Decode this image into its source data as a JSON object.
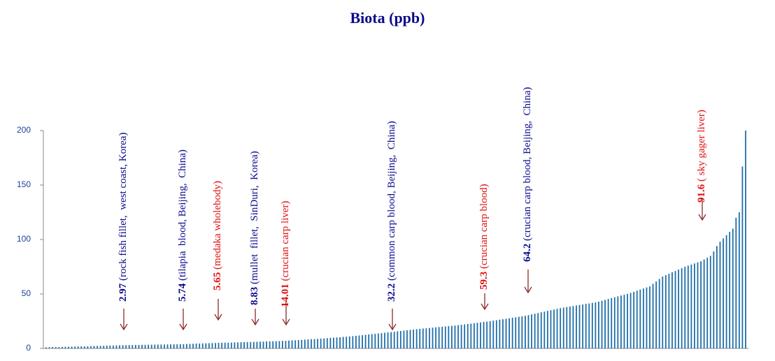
{
  "chart_data": {
    "type": "bar",
    "title": "Biota (ppb)",
    "color": "#1f6fa8",
    "ylim": [
      0,
      200
    ],
    "yticks": [
      0,
      50,
      100,
      150,
      200
    ],
    "grid": false,
    "values": [
      1.0,
      1.1,
      1.2,
      1.3,
      1.3,
      1.4,
      1.5,
      1.6,
      1.6,
      1.7,
      1.8,
      1.9,
      1.9,
      2.0,
      2.1,
      2.2,
      2.3,
      2.3,
      2.4,
      2.5,
      2.6,
      2.7,
      2.8,
      2.9,
      3.0,
      3.0,
      3.1,
      3.1,
      3.2,
      3.2,
      3.3,
      3.3,
      3.4,
      3.4,
      3.5,
      3.5,
      3.6,
      3.6,
      3.7,
      3.7,
      3.8,
      3.8,
      3.9,
      4.0,
      4.1,
      4.2,
      4.3,
      4.4,
      4.5,
      4.6,
      4.7,
      4.8,
      4.9,
      5.0,
      5.1,
      5.2,
      5.3,
      5.3,
      5.4,
      5.5,
      5.6,
      5.7,
      5.8,
      5.8,
      5.9,
      6.0,
      6.1,
      6.2,
      6.3,
      6.4,
      6.5,
      6.6,
      6.7,
      6.8,
      6.9,
      7.0,
      7.2,
      7.4,
      7.5,
      7.7,
      7.9,
      8.1,
      8.3,
      8.5,
      8.6,
      8.8,
      9.0,
      9.2,
      9.4,
      9.7,
      9.9,
      10.1,
      10.3,
      10.6,
      10.8,
      11.0,
      11.3,
      11.6,
      11.9,
      12.2,
      12.5,
      12.8,
      13.1,
      13.4,
      13.7,
      14.0,
      14.4,
      14.7,
      15.0,
      15.3,
      15.7,
      16.0,
      16.3,
      16.7,
      17.0,
      17.3,
      17.7,
      18.0,
      18.3,
      18.5,
      18.8,
      19.1,
      19.4,
      19.6,
      19.9,
      20.2,
      20.5,
      20.7,
      21.0,
      21.4,
      21.7,
      22.1,
      22.5,
      22.8,
      23.2,
      23.5,
      23.9,
      24.3,
      24.6,
      25.0,
      25.5,
      25.9,
      26.4,
      26.8,
      27.3,
      27.7,
      28.2,
      28.6,
      29.1,
      29.5,
      30.0,
      30.6,
      31.3,
      31.9,
      32.5,
      33.2,
      33.8,
      34.5,
      35.1,
      35.7,
      36.4,
      37.0,
      37.5,
      38.0,
      38.5,
      38.9,
      39.4,
      39.9,
      40.4,
      40.9,
      41.3,
      41.8,
      42.3,
      43.0,
      43.8,
      44.6,
      45.4,
      46.2,
      47.0,
      47.8,
      48.6,
      49.3,
      50.1,
      51.0,
      52.0,
      53.0,
      54.0,
      55.0,
      56.0,
      57.0,
      59.3,
      61.5,
      63.8,
      66.0,
      67.3,
      68.6,
      69.9,
      71.1,
      72.4,
      73.7,
      75.0,
      76.0,
      77.0,
      78.0,
      79.0,
      80.0,
      81.7,
      83.3,
      85.0,
      89.0,
      94.0,
      98.0,
      101.0,
      104.0,
      107.0,
      110.0,
      120.0,
      125.0,
      167.0,
      200.0
    ],
    "annotations": [
      {
        "value": 2.97,
        "text": " (rock fish fillet,  west coast, Korea)",
        "color": "#0a0a8c"
      },
      {
        "value": 5.74,
        "text": " (tilapia  blood, Beijing,  China)",
        "color": "#0a0a8c"
      },
      {
        "value": 5.65,
        "text": " (medaka wholebody)",
        "color": "#e01010"
      },
      {
        "value": 8.83,
        "text": " (mullet  fillet,  SinDuri,  Korea)",
        "color": "#0a0a8c"
      },
      {
        "value": 14.01,
        "text": " (crucian carp liver)",
        "color": "#e01010"
      },
      {
        "value": 32.2,
        "text": " (common carp blood, Beijing,  China)",
        "color": "#0a0a8c"
      },
      {
        "value": 59.3,
        "text": " (crucian carp blood)",
        "color": "#e01010"
      },
      {
        "value": 64.2,
        "text": " (crucian carp blood, Beijing,  China)",
        "color": "#0a0a8c"
      },
      {
        "value": 91.6,
        "text": " ( sky gager liver)",
        "color": "#e01010"
      }
    ]
  }
}
